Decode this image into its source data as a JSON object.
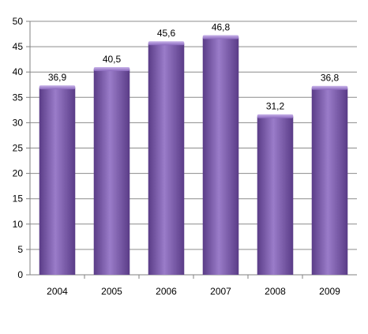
{
  "chart_data": {
    "type": "bar",
    "title": "",
    "xlabel": "",
    "ylabel": "",
    "categories": [
      "2004",
      "2005",
      "2006",
      "2007",
      "2008",
      "2009"
    ],
    "values": [
      36.9,
      40.5,
      45.6,
      46.8,
      31.2,
      36.8
    ],
    "value_labels": [
      "36,9",
      "40,5",
      "45,6",
      "46,8",
      "31,2",
      "36,8"
    ],
    "ylim": [
      0,
      50
    ],
    "y_ticks": [
      0,
      5,
      10,
      15,
      20,
      25,
      30,
      35,
      40,
      45,
      50
    ],
    "grid": true,
    "legend": "none",
    "colors": {
      "bar_light": "#9a7cc9",
      "bar_mid": "#7d5ab0",
      "bar_dark": "#5a3c87",
      "grid": "#8c8c8c",
      "axis": "#808080"
    }
  }
}
